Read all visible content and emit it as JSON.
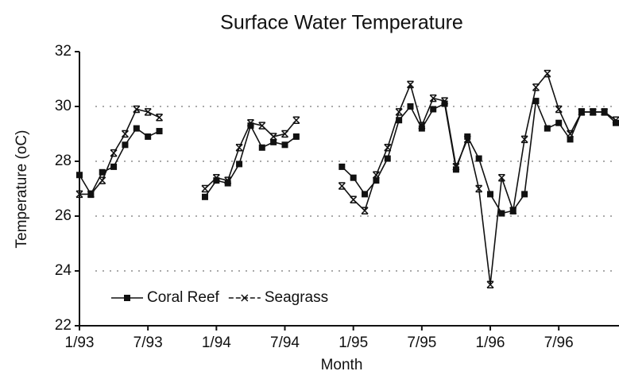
{
  "chart_data": {
    "type": "line",
    "title": "Surface Water Temperature",
    "x_label": "Month",
    "y_label": "Temperature (oC)",
    "categories": [
      "1/93",
      null,
      null,
      null,
      null,
      null,
      "7/93",
      null,
      null,
      null,
      null,
      null,
      "1/94",
      null,
      null,
      null,
      null,
      null,
      "7/94",
      null,
      null,
      null,
      null,
      null,
      "1/95",
      null,
      null,
      null,
      null,
      null,
      "7/95",
      null,
      null,
      null,
      null,
      null,
      "1/96",
      null,
      null,
      null,
      null,
      null,
      "7/96",
      null,
      null,
      null,
      null,
      null
    ],
    "series": [
      {
        "name": "Coral Reef",
        "color": "#111111",
        "marker": "square",
        "values": [
          27.5,
          26.8,
          27.6,
          27.8,
          28.6,
          29.2,
          28.9,
          29.1,
          null,
          null,
          null,
          26.7,
          27.3,
          27.2,
          27.9,
          29.3,
          28.5,
          28.7,
          28.6,
          28.9,
          null,
          null,
          null,
          27.8,
          27.4,
          26.8,
          27.3,
          28.1,
          29.5,
          30.0,
          29.2,
          29.9,
          30.1,
          27.7,
          28.9,
          28.1,
          26.8,
          26.1,
          26.2,
          26.8,
          30.2,
          29.2,
          29.4,
          28.8,
          29.8,
          29.8,
          29.8,
          29.4
        ]
      },
      {
        "name": "Seagrass",
        "color": "#111111",
        "marker": "x",
        "values": [
          26.8,
          26.8,
          27.3,
          28.3,
          29.0,
          29.9,
          29.8,
          29.6,
          null,
          null,
          null,
          27.0,
          27.4,
          27.3,
          28.5,
          29.4,
          29.3,
          28.9,
          29.0,
          29.5,
          null,
          null,
          null,
          27.1,
          26.6,
          26.2,
          27.5,
          28.5,
          29.8,
          30.8,
          29.3,
          30.3,
          30.2,
          27.8,
          28.8,
          27.0,
          23.5,
          27.4,
          26.2,
          28.8,
          30.7,
          31.2,
          29.9,
          29.0,
          29.8,
          29.8,
          29.8,
          29.5
        ]
      }
    ],
    "ylim": [
      22,
      32
    ],
    "yticks": [
      22,
      24,
      26,
      28,
      30,
      32
    ],
    "grid": true,
    "legend": "lower left"
  }
}
